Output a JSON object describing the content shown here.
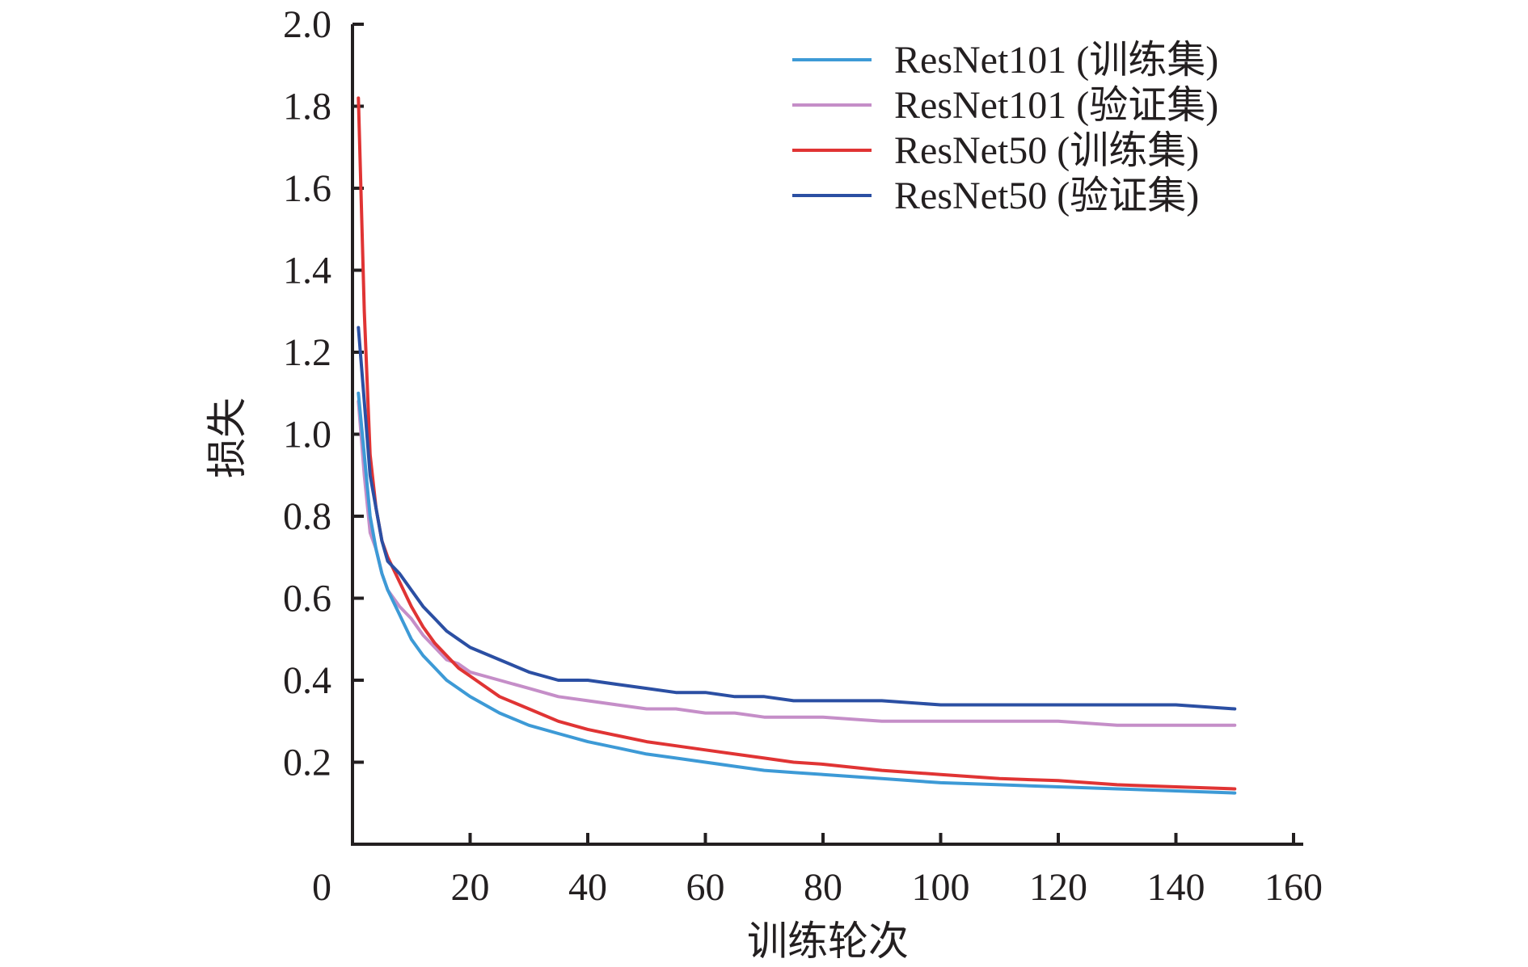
{
  "chart_data": {
    "type": "line",
    "title": "",
    "xlabel": "训练轮次",
    "ylabel": "损失",
    "xlim": [
      0,
      160
    ],
    "ylim": [
      0,
      2.0
    ],
    "x_ticks": [
      0,
      20,
      40,
      60,
      80,
      100,
      120,
      140,
      160
    ],
    "x_tick_labels": [
      "0",
      "20",
      "40",
      "60",
      "80",
      "100",
      "120",
      "140",
      "160"
    ],
    "y_ticks": [
      0.2,
      0.4,
      0.6,
      0.8,
      1.0,
      1.2,
      1.4,
      1.6,
      1.8,
      2.0
    ],
    "y_tick_labels": [
      "0.2",
      "0.4",
      "0.6",
      "0.8",
      "1.0",
      "1.2",
      "1.4",
      "1.6",
      "1.8",
      "2.0"
    ],
    "grid": false,
    "legend_position": "top-right",
    "series": [
      {
        "name": "ResNet101 (训练集)",
        "color": "#3d9ad6",
        "x": [
          1,
          2,
          3,
          4,
          5,
          6,
          8,
          10,
          12,
          14,
          16,
          18,
          20,
          25,
          30,
          35,
          40,
          45,
          50,
          55,
          60,
          65,
          70,
          75,
          80,
          90,
          100,
          110,
          120,
          130,
          140,
          150
        ],
        "y": [
          1.1,
          0.95,
          0.8,
          0.72,
          0.66,
          0.62,
          0.56,
          0.5,
          0.46,
          0.43,
          0.4,
          0.38,
          0.36,
          0.32,
          0.29,
          0.27,
          0.25,
          0.235,
          0.22,
          0.21,
          0.2,
          0.19,
          0.18,
          0.175,
          0.17,
          0.16,
          0.15,
          0.145,
          0.14,
          0.135,
          0.13,
          0.125
        ]
      },
      {
        "name": "ResNet101 (验证集)",
        "color": "#c58ec8",
        "x": [
          1,
          2,
          3,
          4,
          5,
          6,
          8,
          10,
          12,
          14,
          16,
          18,
          20,
          25,
          30,
          35,
          40,
          45,
          50,
          55,
          60,
          65,
          70,
          75,
          80,
          90,
          100,
          110,
          120,
          130,
          140,
          150
        ],
        "y": [
          1.08,
          0.9,
          0.76,
          0.72,
          0.66,
          0.62,
          0.58,
          0.55,
          0.51,
          0.48,
          0.45,
          0.44,
          0.42,
          0.4,
          0.38,
          0.36,
          0.35,
          0.34,
          0.33,
          0.33,
          0.32,
          0.32,
          0.31,
          0.31,
          0.31,
          0.3,
          0.3,
          0.3,
          0.3,
          0.29,
          0.29,
          0.29
        ]
      },
      {
        "name": "ResNet50 (训练集)",
        "color": "#e03434",
        "x": [
          1,
          2,
          3,
          4,
          5,
          6,
          8,
          10,
          12,
          14,
          16,
          18,
          20,
          25,
          30,
          35,
          40,
          45,
          50,
          55,
          60,
          65,
          70,
          75,
          80,
          90,
          100,
          110,
          120,
          130,
          140,
          150
        ],
        "y": [
          1.82,
          1.3,
          0.95,
          0.82,
          0.74,
          0.7,
          0.64,
          0.58,
          0.53,
          0.49,
          0.46,
          0.43,
          0.41,
          0.36,
          0.33,
          0.3,
          0.28,
          0.265,
          0.25,
          0.24,
          0.23,
          0.22,
          0.21,
          0.2,
          0.195,
          0.18,
          0.17,
          0.16,
          0.155,
          0.145,
          0.14,
          0.135
        ]
      },
      {
        "name": "ResNet50 (验证集)",
        "color": "#2b4fa3",
        "x": [
          1,
          2,
          3,
          4,
          5,
          6,
          8,
          10,
          12,
          14,
          16,
          18,
          20,
          25,
          30,
          35,
          40,
          45,
          50,
          55,
          60,
          65,
          70,
          75,
          80,
          90,
          100,
          110,
          120,
          130,
          140,
          150
        ],
        "y": [
          1.26,
          1.08,
          0.9,
          0.82,
          0.74,
          0.69,
          0.66,
          0.62,
          0.58,
          0.55,
          0.52,
          0.5,
          0.48,
          0.45,
          0.42,
          0.4,
          0.4,
          0.39,
          0.38,
          0.37,
          0.37,
          0.36,
          0.36,
          0.35,
          0.35,
          0.35,
          0.34,
          0.34,
          0.34,
          0.34,
          0.34,
          0.33
        ]
      }
    ]
  }
}
